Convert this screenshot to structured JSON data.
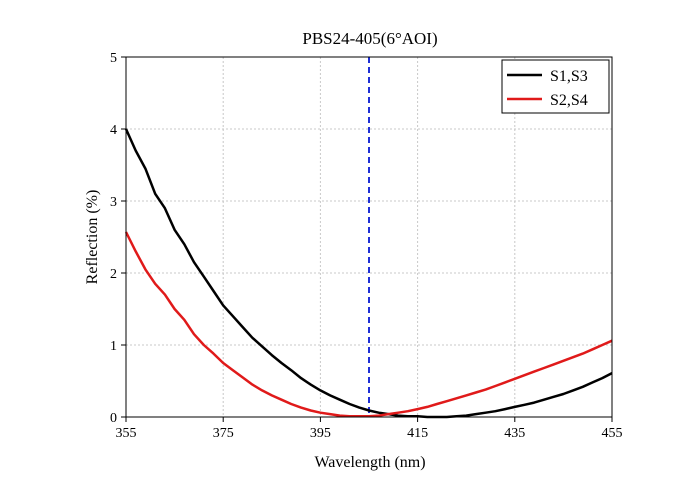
{
  "chart_data": {
    "type": "line",
    "title": "PBS24-405(6°AOI)",
    "xlabel": "Wavelength (nm)",
    "ylabel": "Reflection (%)",
    "xlim": [
      355,
      455
    ],
    "ylim": [
      0,
      5
    ],
    "x_ticks": [
      "355",
      "375",
      "395",
      "415",
      "435",
      "455"
    ],
    "y_ticks": [
      "0",
      "1",
      "2",
      "3",
      "4",
      "5"
    ],
    "grid": true,
    "legend_position": "top-right",
    "reference_line": {
      "x": 405,
      "style": "dashed",
      "color": "#1f2fd6"
    },
    "series": [
      {
        "name": "S1,S3",
        "color": "#000000",
        "x": [
          355,
          357,
          359,
          361,
          363,
          365,
          367,
          369,
          371,
          373,
          375,
          377,
          379,
          381,
          383,
          385,
          387,
          389,
          391,
          393,
          395,
          397,
          399,
          401,
          403,
          405,
          407,
          409,
          411,
          413,
          415,
          417,
          419,
          421,
          423,
          425,
          427,
          429,
          431,
          433,
          435,
          437,
          439,
          441,
          443,
          445,
          447,
          449,
          451,
          453,
          455
        ],
        "values": [
          4.0,
          3.7,
          3.45,
          3.1,
          2.9,
          2.6,
          2.4,
          2.15,
          1.95,
          1.75,
          1.55,
          1.4,
          1.25,
          1.1,
          0.98,
          0.86,
          0.75,
          0.65,
          0.54,
          0.45,
          0.37,
          0.3,
          0.24,
          0.18,
          0.13,
          0.09,
          0.06,
          0.04,
          0.02,
          0.01,
          0.01,
          0.0,
          0.0,
          0.0,
          0.01,
          0.02,
          0.04,
          0.06,
          0.08,
          0.11,
          0.14,
          0.17,
          0.2,
          0.24,
          0.28,
          0.32,
          0.37,
          0.42,
          0.48,
          0.54,
          0.61
        ]
      },
      {
        "name": "S2,S4",
        "color": "#e01a1a",
        "x": [
          355,
          357,
          359,
          361,
          363,
          365,
          367,
          369,
          371,
          373,
          375,
          377,
          379,
          381,
          383,
          385,
          387,
          389,
          391,
          393,
          395,
          397,
          399,
          401,
          403,
          405,
          407,
          409,
          411,
          413,
          415,
          417,
          419,
          421,
          423,
          425,
          427,
          429,
          431,
          433,
          435,
          437,
          439,
          441,
          443,
          445,
          447,
          449,
          451,
          453,
          455
        ],
        "values": [
          2.57,
          2.3,
          2.05,
          1.85,
          1.7,
          1.5,
          1.35,
          1.15,
          1.0,
          0.88,
          0.75,
          0.65,
          0.55,
          0.45,
          0.37,
          0.3,
          0.24,
          0.18,
          0.13,
          0.09,
          0.06,
          0.04,
          0.02,
          0.01,
          0.01,
          0.01,
          0.02,
          0.04,
          0.06,
          0.08,
          0.11,
          0.14,
          0.18,
          0.22,
          0.26,
          0.3,
          0.34,
          0.38,
          0.43,
          0.48,
          0.53,
          0.58,
          0.63,
          0.68,
          0.73,
          0.78,
          0.83,
          0.88,
          0.94,
          1.0,
          1.06
        ]
      }
    ]
  }
}
